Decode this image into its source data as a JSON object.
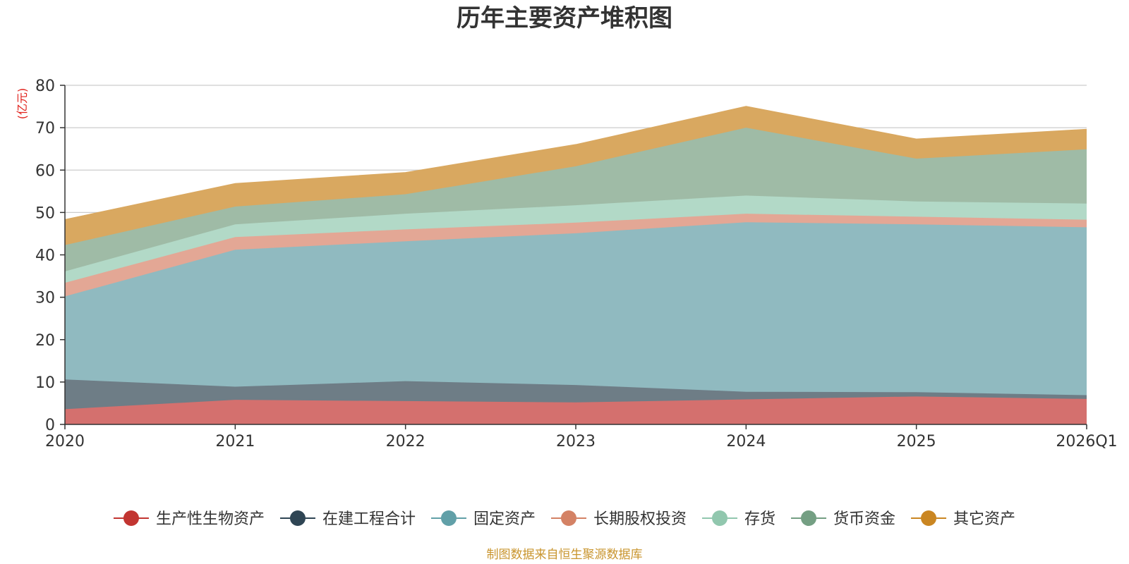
{
  "chart_data": {
    "type": "area",
    "stacked": true,
    "title": "历年主要资产堆积图",
    "unit": "(亿元)",
    "categories": [
      "2020",
      "2021",
      "2022",
      "2023",
      "2024",
      "2025",
      "2026Q1"
    ],
    "ylim": [
      0,
      80
    ],
    "yticks": [
      0,
      10,
      20,
      30,
      40,
      50,
      60,
      70,
      80
    ],
    "grid": true,
    "legend_position": "bottom",
    "series": [
      {
        "name": "生产性生物资产",
        "color": "#c23531",
        "fill": "#d4706e",
        "values": [
          3.6,
          5.8,
          5.5,
          5.2,
          5.9,
          6.6,
          6.0
        ]
      },
      {
        "name": "在建工程合计",
        "color": "#2f4554",
        "fill": "#6e7d86",
        "values": [
          7.0,
          3.1,
          4.7,
          4.1,
          1.8,
          1.0,
          0.9
        ]
      },
      {
        "name": "固定资产",
        "color": "#61a0a8",
        "fill": "#90bac0",
        "values": [
          19.6,
          32.3,
          33.0,
          35.8,
          40.0,
          39.6,
          39.6
        ]
      },
      {
        "name": "长期股权投资",
        "color": "#d48265",
        "fill": "#e3a795",
        "values": [
          3.2,
          3.0,
          2.8,
          2.5,
          2.0,
          1.8,
          1.8
        ]
      },
      {
        "name": "存货",
        "color": "#91c7ae",
        "fill": "#b2d9c7",
        "values": [
          2.7,
          3.0,
          3.7,
          4.1,
          4.3,
          3.6,
          3.8
        ]
      },
      {
        "name": "货币资金",
        "color": "#749f83",
        "fill": "#9fbba6",
        "values": [
          6.2,
          4.2,
          4.6,
          9.2,
          16.0,
          10.1,
          12.8
        ]
      },
      {
        "name": "其它资产",
        "color": "#ca8622",
        "fill": "#d9a860",
        "values": [
          6.0,
          5.4,
          5.1,
          5.1,
          5.0,
          4.6,
          4.7
        ]
      }
    ]
  },
  "footer": {
    "source": "制图数据来自恒生聚源数据库"
  }
}
